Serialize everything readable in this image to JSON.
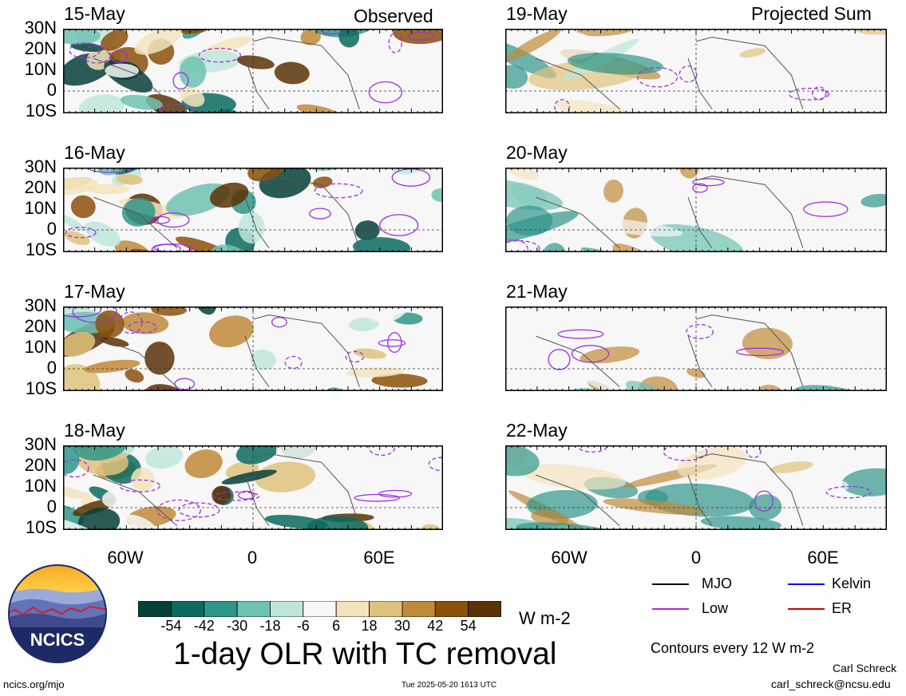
{
  "panels_observed": [
    {
      "date": "15-May",
      "tag": "Observed"
    },
    {
      "date": "16-May",
      "tag": ""
    },
    {
      "date": "17-May",
      "tag": ""
    },
    {
      "date": "18-May",
      "tag": ""
    }
  ],
  "panels_projected": [
    {
      "date": "19-May",
      "tag": "Projected Sum"
    },
    {
      "date": "20-May",
      "tag": ""
    },
    {
      "date": "21-May",
      "tag": ""
    },
    {
      "date": "22-May",
      "tag": ""
    }
  ],
  "lat_labels": [
    "30N",
    "20N",
    "10N",
    "0",
    "10S"
  ],
  "lon_labels": [
    "60W",
    "0",
    "60E"
  ],
  "colorbar": {
    "ticks": [
      "-54",
      "-42",
      "-30",
      "-18",
      "-6",
      "6",
      "18",
      "30",
      "42",
      "54"
    ],
    "colors": [
      "#06403a",
      "#0b6b5f",
      "#2f968a",
      "#6ec2b2",
      "#bfe6dc",
      "#f7f7f7",
      "#f3e4bd",
      "#dfc27d",
      "#bf8a39",
      "#8c510a",
      "#5a3205"
    ],
    "units": "W m-2"
  },
  "legend": {
    "items": [
      {
        "label": "MJO",
        "color": "#000000"
      },
      {
        "label": "Kelvin",
        "color": "#0000ff"
      },
      {
        "label": "Low",
        "color": "#a030e0"
      },
      {
        "label": "ER",
        "color": "#cc0000"
      }
    ],
    "contour_note": "Contours every 12 W m-2"
  },
  "logo_text": "NCICS",
  "title": "1-day OLR with TC removal",
  "footer": {
    "url": "ncics.org/mjo",
    "timestamp": "Tue 2025-05-20 1613 UTC",
    "author": "Carl Schreck",
    "email": "carl_schreck@ncsu.edu"
  }
}
